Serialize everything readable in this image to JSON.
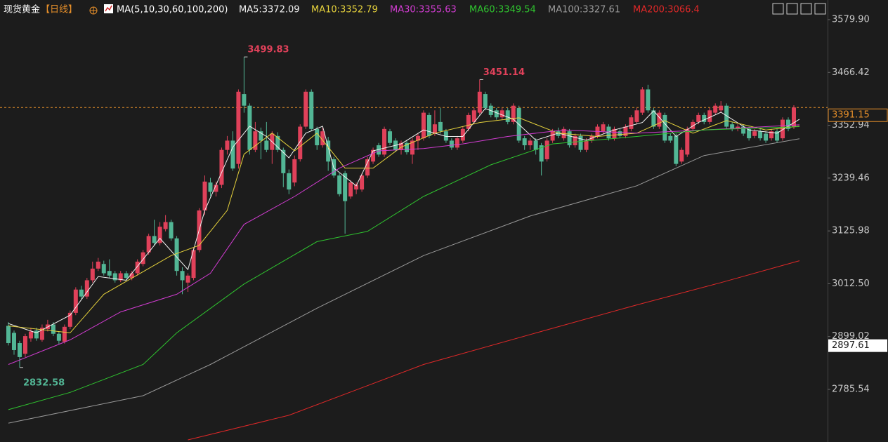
{
  "chart_data": {
    "type": "candlestick",
    "title": "现货黄金",
    "period": "【日线】",
    "indicator": "MA(5,10,30,60,100,200)",
    "up_color": "#e0415a",
    "down_color": "#52b695",
    "ylim": [
      2672.5,
      3622.1
    ],
    "yticks": [
      {
        "value": 3579.9,
        "label": "3579.90"
      },
      3466.42,
      3352.94,
      3239.46,
      3125.98,
      {
        "value": 3012.5,
        "label": "3012.50"
      },
      2899.02,
      2785.54
    ],
    "grid": false,
    "last_price": {
      "value": 3391.15,
      "color": "#e8902a"
    },
    "marker_price": {
      "value": 2897.61,
      "color": "#ffffff"
    },
    "annotations": [
      {
        "value": 3499.83,
        "color": "#e0415a"
      },
      {
        "value": 3451.14,
        "color": "#e0415a"
      },
      {
        "value": 2832.58,
        "color": "#52b695"
      }
    ],
    "candles": [
      [
        2922,
        2930,
        2880,
        2885
      ],
      [
        2907,
        2912,
        2860,
        2870
      ],
      [
        2885,
        2890,
        2832.58,
        2855
      ],
      [
        2862,
        2905,
        2855,
        2900
      ],
      [
        2895,
        2918,
        2888,
        2910
      ],
      [
        2912,
        2918,
        2890,
        2895
      ],
      [
        2892,
        2925,
        2888,
        2918
      ],
      [
        2915,
        2935,
        2910,
        2925
      ],
      [
        2925,
        2930,
        2900,
        2905
      ],
      [
        2905,
        2910,
        2882,
        2890
      ],
      [
        2888,
        2925,
        2884,
        2920
      ],
      [
        2920,
        2955,
        2915,
        2950
      ],
      [
        2950,
        3005,
        2945,
        3000
      ],
      [
        3000,
        3008,
        2980,
        2985
      ],
      [
        2985,
        3025,
        2980,
        3020
      ],
      [
        3020,
        3060,
        3015,
        3045
      ],
      [
        3045,
        3068,
        3040,
        3060
      ],
      [
        3055,
        3062,
        3030,
        3035
      ],
      [
        3040,
        3065,
        3025,
        3030
      ],
      [
        3035,
        3040,
        3015,
        3020
      ],
      [
        3020,
        3040,
        3016,
        3035
      ],
      [
        3035,
        3040,
        3020,
        3025
      ],
      [
        3025,
        3040,
        3020,
        3035
      ],
      [
        3035,
        3065,
        3030,
        3060
      ],
      [
        3055,
        3085,
        3050,
        3080
      ],
      [
        3080,
        3120,
        3075,
        3115
      ],
      [
        3115,
        3150,
        3095,
        3100
      ],
      [
        3100,
        3145,
        3095,
        3135
      ],
      [
        3130,
        3160,
        3125,
        3145
      ],
      [
        3145,
        3150,
        3105,
        3110
      ],
      [
        3110,
        3115,
        3030,
        3040
      ],
      [
        3040,
        3048,
        2990,
        3020
      ],
      [
        3015,
        3035,
        2995,
        3030
      ],
      [
        3025,
        3090,
        3020,
        3085
      ],
      [
        3085,
        3175,
        3080,
        3170
      ],
      [
        3170,
        3245,
        3160,
        3232
      ],
      [
        3230,
        3240,
        3200,
        3210
      ],
      [
        3210,
        3232,
        3200,
        3225
      ],
      [
        3225,
        3305,
        3218,
        3300
      ],
      [
        3300,
        3330,
        3290,
        3320
      ],
      [
        3320,
        3340,
        3255,
        3260
      ],
      [
        3270,
        3430,
        3260,
        3425
      ],
      [
        3420,
        3499.83,
        3380,
        3395
      ],
      [
        3395,
        3400,
        3290,
        3300
      ],
      [
        3300,
        3360,
        3295,
        3340
      ],
      [
        3340,
        3348,
        3280,
        3320
      ],
      [
        3320,
        3360,
        3295,
        3300
      ],
      [
        3300,
        3340,
        3270,
        3335
      ],
      [
        3330,
        3338,
        3295,
        3300
      ],
      [
        3300,
        3305,
        3220,
        3250
      ],
      [
        3250,
        3258,
        3205,
        3215
      ],
      [
        3230,
        3288,
        3222,
        3280
      ],
      [
        3280,
        3355,
        3275,
        3350
      ],
      [
        3350,
        3430,
        3345,
        3425
      ],
      [
        3425,
        3430,
        3340,
        3345
      ],
      [
        3345,
        3350,
        3300,
        3310
      ],
      [
        3310,
        3348,
        3305,
        3340
      ],
      [
        3320,
        3328,
        3255,
        3275
      ],
      [
        3280,
        3285,
        3240,
        3245
      ],
      [
        3245,
        3250,
        3200,
        3205
      ],
      [
        3250,
        3255,
        3120,
        3190
      ],
      [
        3200,
        3235,
        3195,
        3230
      ],
      [
        3215,
        3230,
        3205,
        3225
      ],
      [
        3215,
        3250,
        3210,
        3245
      ],
      [
        3245,
        3285,
        3240,
        3280
      ],
      [
        3275,
        3305,
        3270,
        3300
      ],
      [
        3310,
        3315,
        3285,
        3290
      ],
      [
        3290,
        3350,
        3285,
        3345
      ],
      [
        3340,
        3345,
        3310,
        3315
      ],
      [
        3320,
        3325,
        3295,
        3300
      ],
      [
        3300,
        3320,
        3290,
        3315
      ],
      [
        3315,
        3320,
        3290,
        3295
      ],
      [
        3290,
        3325,
        3270,
        3320
      ],
      [
        3320,
        3335,
        3300,
        3330
      ],
      [
        3325,
        3385,
        3320,
        3380
      ],
      [
        3375,
        3380,
        3325,
        3330
      ],
      [
        3335,
        3385,
        3330,
        3355
      ],
      [
        3360,
        3390,
        3335,
        3340
      ],
      [
        3340,
        3345,
        3315,
        3320
      ],
      [
        3320,
        3325,
        3300,
        3305
      ],
      [
        3305,
        3330,
        3300,
        3325
      ],
      [
        3320,
        3350,
        3315,
        3345
      ],
      [
        3345,
        3380,
        3340,
        3375
      ],
      [
        3360,
        3390,
        3355,
        3385
      ],
      [
        3380,
        3451.14,
        3375,
        3425
      ],
      [
        3420,
        3425,
        3385,
        3390
      ],
      [
        3395,
        3400,
        3370,
        3375
      ],
      [
        3385,
        3390,
        3365,
        3370
      ],
      [
        3370,
        3390,
        3365,
        3385
      ],
      [
        3385,
        3390,
        3355,
        3360
      ],
      [
        3360,
        3400,
        3355,
        3395
      ],
      [
        3390,
        3395,
        3315,
        3320
      ],
      [
        3325,
        3330,
        3300,
        3310
      ],
      [
        3310,
        3325,
        3300,
        3320
      ],
      [
        3320,
        3325,
        3290,
        3300
      ],
      [
        3310,
        3315,
        3245,
        3275
      ],
      [
        3280,
        3325,
        3275,
        3320
      ],
      [
        3320,
        3345,
        3315,
        3340
      ],
      [
        3340,
        3348,
        3325,
        3330
      ],
      [
        3325,
        3350,
        3320,
        3345
      ],
      [
        3340,
        3345,
        3305,
        3310
      ],
      [
        3310,
        3335,
        3305,
        3330
      ],
      [
        3330,
        3335,
        3295,
        3300
      ],
      [
        3300,
        3325,
        3295,
        3320
      ],
      [
        3320,
        3335,
        3315,
        3330
      ],
      [
        3330,
        3355,
        3325,
        3350
      ],
      [
        3340,
        3360,
        3335,
        3355
      ],
      [
        3350,
        3355,
        3320,
        3325
      ],
      [
        3325,
        3350,
        3320,
        3345
      ],
      [
        3340,
        3345,
        3325,
        3330
      ],
      [
        3330,
        3355,
        3325,
        3350
      ],
      [
        3345,
        3375,
        3340,
        3370
      ],
      [
        3360,
        3390,
        3355,
        3385
      ],
      [
        3380,
        3435,
        3375,
        3430
      ],
      [
        3430,
        3440,
        3380,
        3385
      ],
      [
        3385,
        3390,
        3345,
        3350
      ],
      [
        3350,
        3385,
        3345,
        3380
      ],
      [
        3375,
        3380,
        3315,
        3320
      ],
      [
        3330,
        3335,
        3315,
        3320
      ],
      [
        3330,
        3335,
        3265,
        3270
      ],
      [
        3275,
        3305,
        3270,
        3300
      ],
      [
        3290,
        3350,
        3285,
        3345
      ],
      [
        3345,
        3365,
        3340,
        3360
      ],
      [
        3360,
        3380,
        3355,
        3375
      ],
      [
        3375,
        3380,
        3355,
        3360
      ],
      [
        3360,
        3390,
        3355,
        3385
      ],
      [
        3380,
        3400,
        3375,
        3395
      ],
      [
        3385,
        3405,
        3380,
        3395
      ],
      [
        3395,
        3400,
        3345,
        3350
      ],
      [
        3355,
        3360,
        3340,
        3345
      ],
      [
        3345,
        3355,
        3340,
        3350
      ],
      [
        3350,
        3355,
        3330,
        3335
      ],
      [
        3345,
        3350,
        3320,
        3325
      ],
      [
        3330,
        3345,
        3325,
        3340
      ],
      [
        3340,
        3345,
        3320,
        3325
      ],
      [
        3335,
        3340,
        3315,
        3320
      ],
      [
        3325,
        3345,
        3320,
        3340
      ],
      [
        3340,
        3345,
        3315,
        3320
      ],
      [
        3325,
        3370,
        3320,
        3365
      ],
      [
        3365,
        3370,
        3340,
        3345
      ],
      [
        3350,
        3396,
        3345,
        3391.15
      ]
    ],
    "series": [
      {
        "name": "MA5:3372.09",
        "color": "#f2f2f2",
        "x": [
          0,
          5,
          11,
          16,
          21,
          27,
          32,
          35,
          40,
          43,
          46,
          50,
          53,
          56,
          58,
          62,
          65,
          70,
          74,
          78,
          81,
          85,
          90,
          94,
          98,
          103,
          108,
          113,
          115,
          119,
          123,
          127,
          132,
          137,
          141
        ],
        "values": [
          2927,
          2907,
          2945,
          3028,
          3020,
          3110,
          3043,
          3170,
          3306,
          3351,
          3329,
          3283,
          3336,
          3351,
          3261,
          3223,
          3298,
          3313,
          3343,
          3329,
          3329,
          3389,
          3366,
          3321,
          3336,
          3321,
          3343,
          3359,
          3384,
          3329,
          3359,
          3381,
          3343,
          3336,
          3366
        ]
      },
      {
        "name": "MA10:3352.79",
        "color": "#e6d23c",
        "x": [
          0,
          11,
          17,
          29,
          34,
          39,
          42,
          47,
          51,
          55,
          60,
          65,
          70,
          76,
          84,
          91,
          98,
          105,
          112,
          117,
          122,
          128,
          135,
          141
        ],
        "values": [
          2922,
          2907,
          2990,
          3073,
          3095,
          3170,
          3291,
          3336,
          3298,
          3336,
          3261,
          3261,
          3306,
          3336,
          3359,
          3369,
          3336,
          3329,
          3336,
          3363,
          3336,
          3363,
          3343,
          3351
        ]
      },
      {
        "name": "MA30:3355.63",
        "color": "#d23cd2",
        "x": [
          0,
          11,
          20,
          30,
          36,
          42,
          51,
          59,
          66,
          74,
          81,
          89,
          99,
          112,
          124,
          141
        ],
        "values": [
          2839,
          2892,
          2952,
          2990,
          3035,
          3140,
          3200,
          3261,
          3298,
          3303,
          3313,
          3329,
          3343,
          3336,
          3343,
          3354
        ]
      },
      {
        "name": "MA60:3349.54",
        "color": "#2fc42f",
        "x": [
          0,
          11,
          24,
          30,
          42,
          55,
          64,
          74,
          86,
          97,
          112,
          124,
          141
        ],
        "values": [
          2742,
          2779,
          2839,
          2907,
          3012,
          3103,
          3125,
          3200,
          3268,
          3313,
          3329,
          3343,
          3350
        ]
      },
      {
        "name": "MA100:3327.61",
        "color": "#9a9a9a",
        "x": [
          0,
          24,
          36,
          55,
          74,
          93,
          112,
          124,
          141
        ],
        "values": [
          2713,
          2772,
          2839,
          2960,
          3073,
          3158,
          3223,
          3288,
          3324
        ]
      },
      {
        "name": "MA200:3066.4",
        "color": "#e02828",
        "x": [
          32,
          50,
          74,
          95,
          112,
          127,
          141
        ],
        "values": [
          2677,
          2730,
          2839,
          2910,
          2967,
          3015,
          3062
        ]
      }
    ]
  }
}
